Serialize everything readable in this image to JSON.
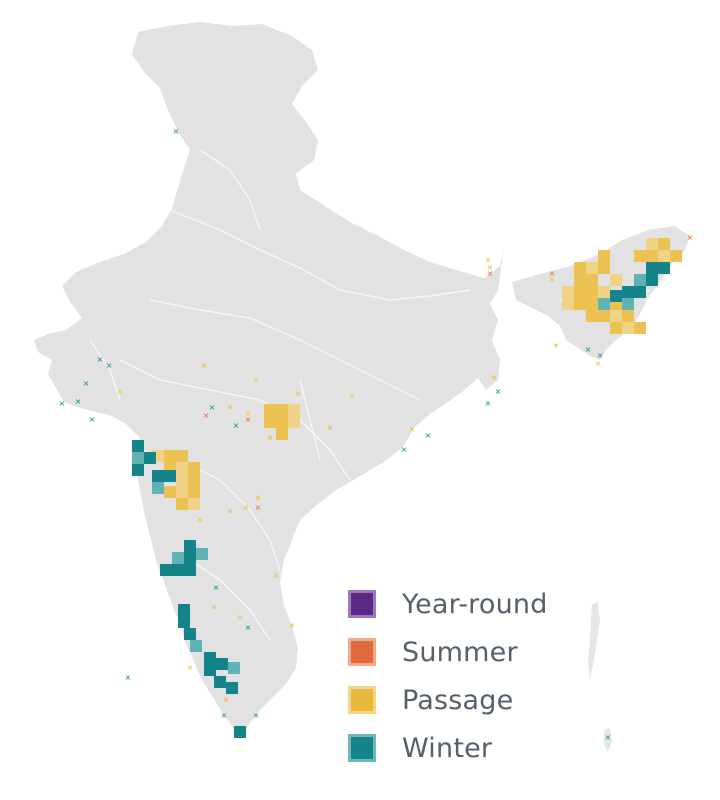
{
  "legend": {
    "items": [
      {
        "key": "year_round",
        "label": "Year-round",
        "color": "#5a2a86",
        "border": "#9b79ba"
      },
      {
        "key": "summer",
        "label": "Summer",
        "color": "#e06a3f",
        "border": "#f0a98b"
      },
      {
        "key": "passage",
        "label": "Passage",
        "color": "#e8b73d",
        "border": "#f3d68a"
      },
      {
        "key": "winter",
        "label": "Winter",
        "color": "#14838a",
        "border": "#6fb7ba"
      }
    ]
  },
  "map": {
    "region": "India",
    "land_color": "#e2e2e2",
    "boundary_color": "#f4f4f4",
    "passage_fill": "#ecc253",
    "passage_fill_light": "#f1d387",
    "winter_fill": "#14838a",
    "winter_fill_light": "#5fb3b5",
    "summer_mark": "#e06a3f",
    "passage_mark": "#e8b73d",
    "winter_mark": "#14838a"
  }
}
